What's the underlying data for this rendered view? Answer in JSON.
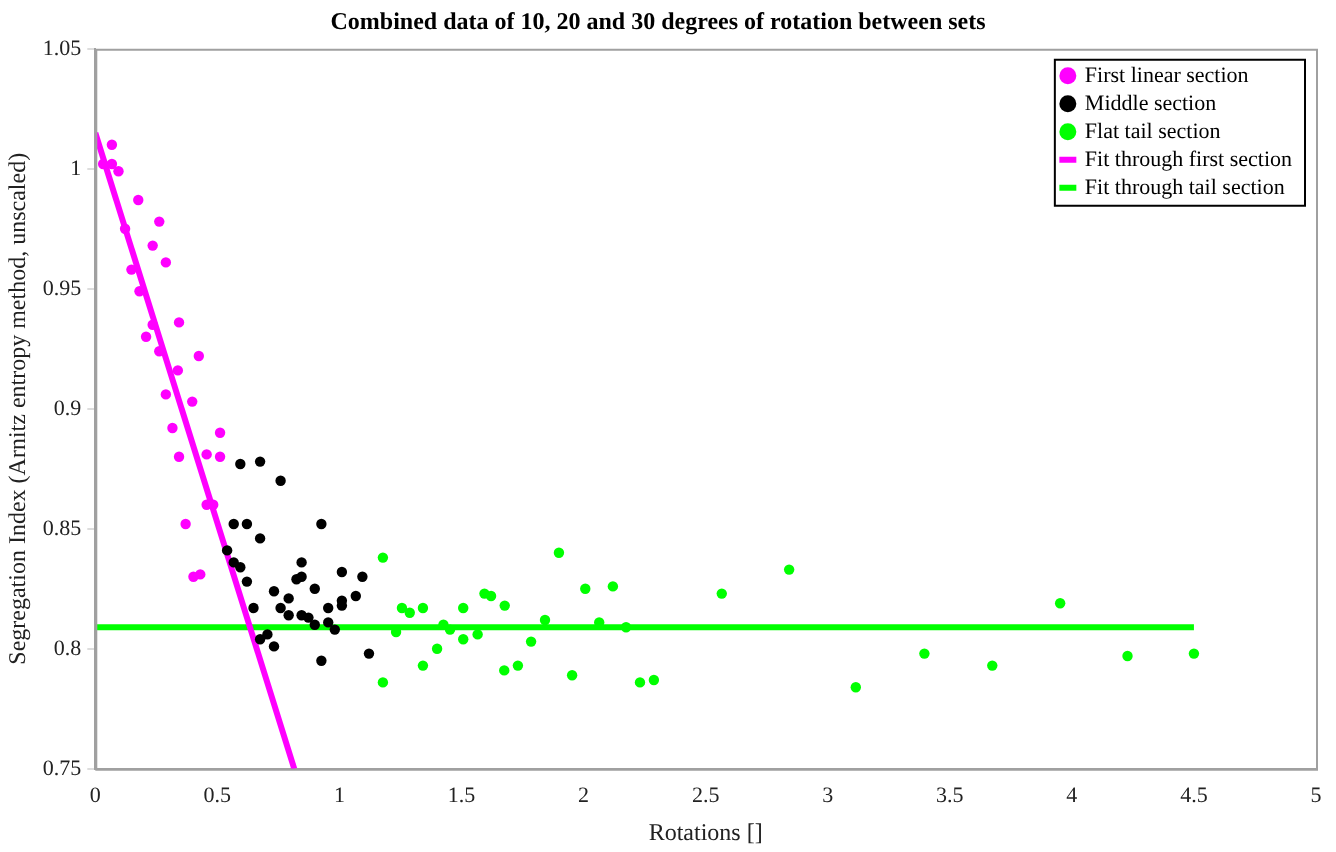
{
  "chart_data": {
    "type": "scatter",
    "title": "Combined data of 10, 20 and 30 degrees of rotation between sets",
    "xlabel": "Rotations []",
    "ylabel": "Segregation Index (Arnitz entropy method, unscaled)",
    "xlim": [
      0,
      5
    ],
    "xticks": [
      0,
      0.5,
      1,
      1.5,
      2,
      2.5,
      3,
      3.5,
      4,
      4.5,
      5
    ],
    "ylim": [
      0.75,
      1.05
    ],
    "yticks": [
      0.75,
      0.8,
      0.85,
      0.9,
      0.95,
      1,
      1.05
    ],
    "grid": false,
    "legend": "top right",
    "marker": "circle",
    "series": [
      {
        "name": "First linear section",
        "type": "scatter",
        "color": "#ff00ff",
        "x": [
          0.032,
          0.068,
          0.068,
          0.095,
          0.176,
          0.122,
          0.262,
          0.235,
          0.289,
          0.148,
          0.181,
          0.208,
          0.235,
          0.262,
          0.343,
          0.338,
          0.424,
          0.289,
          0.397,
          0.316,
          0.511,
          0.343,
          0.456,
          0.511,
          0.456,
          0.483,
          0.37,
          0.402,
          0.43
        ],
        "values": [
          1.002,
          1.01,
          1.002,
          0.999,
          0.987,
          0.975,
          0.978,
          0.968,
          0.961,
          0.958,
          0.949,
          0.93,
          0.935,
          0.924,
          0.936,
          0.916,
          0.922,
          0.906,
          0.903,
          0.892,
          0.89,
          0.88,
          0.881,
          0.88,
          0.86,
          0.86,
          0.852,
          0.83,
          0.831
        ]
      },
      {
        "name": "Middle section",
        "type": "scatter",
        "color": "#000000",
        "x": [
          0.594,
          0.675,
          0.759,
          0.567,
          0.621,
          0.926,
          0.675,
          0.54,
          0.567,
          0.594,
          0.845,
          0.621,
          0.824,
          0.845,
          1.01,
          1.094,
          0.732,
          0.899,
          1.067,
          1.01,
          0.792,
          1.01,
          0.648,
          0.759,
          0.954,
          0.792,
          0.845,
          0.873,
          0.899,
          0.954,
          0.981,
          0.705,
          0.675,
          0.732,
          1.121,
          0.926
        ],
        "values": [
          0.877,
          0.878,
          0.87,
          0.852,
          0.852,
          0.852,
          0.846,
          0.841,
          0.836,
          0.834,
          0.836,
          0.828,
          0.829,
          0.83,
          0.832,
          0.83,
          0.824,
          0.825,
          0.822,
          0.82,
          0.821,
          0.818,
          0.817,
          0.817,
          0.817,
          0.814,
          0.814,
          0.813,
          0.81,
          0.811,
          0.808,
          0.806,
          0.804,
          0.801,
          0.798,
          0.795
        ]
      },
      {
        "name": "Flat tail section",
        "type": "scatter",
        "color": "#00ff00",
        "x": [
          1.178,
          1.256,
          1.288,
          1.342,
          1.232,
          1.4,
          1.426,
          1.453,
          1.507,
          1.507,
          1.342,
          1.178,
          1.594,
          1.621,
          1.677,
          1.566,
          1.675,
          1.731,
          1.785,
          1.842,
          1.899,
          1.953,
          2.007,
          2.064,
          2.12,
          2.174,
          2.231,
          2.288,
          2.566,
          2.842,
          3.115,
          3.396,
          3.674,
          3.952,
          4.228,
          4.5
        ],
        "values": [
          0.838,
          0.817,
          0.815,
          0.817,
          0.807,
          0.8,
          0.81,
          0.808,
          0.817,
          0.804,
          0.793,
          0.786,
          0.823,
          0.822,
          0.818,
          0.806,
          0.791,
          0.793,
          0.803,
          0.812,
          0.84,
          0.789,
          0.825,
          0.811,
          0.826,
          0.809,
          0.786,
          0.787,
          0.823,
          0.833,
          0.784,
          0.798,
          0.793,
          0.819,
          0.797,
          0.798
        ]
      },
      {
        "name": "Fit through first section",
        "type": "line",
        "marker": "none",
        "line_style": "solid",
        "color": "#ff00ff",
        "x": [
          0,
          0.815
        ],
        "values": [
          1.015,
          0.75
        ]
      },
      {
        "name": "Fit through tail section",
        "type": "line",
        "marker": "none",
        "line_style": "solid",
        "color": "#00ff00",
        "x": [
          0,
          4.5
        ],
        "values": [
          0.809,
          0.809
        ]
      }
    ]
  }
}
